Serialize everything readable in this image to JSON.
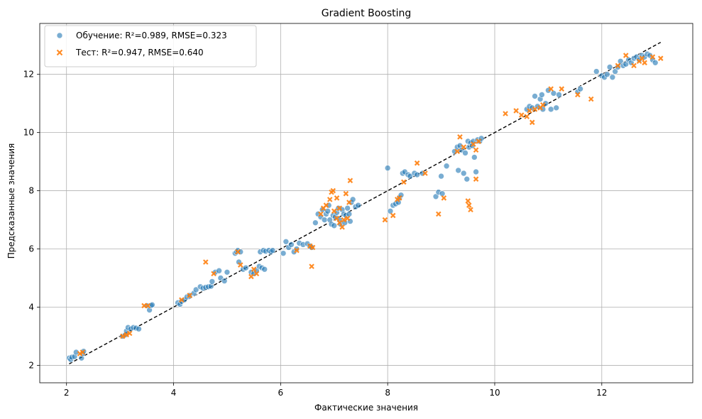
{
  "chart_data": {
    "type": "scatter",
    "title": "Gradient Boosting",
    "xlabel": "Фактические значения",
    "ylabel": "Предсказанные значения",
    "xlim": [
      1.5,
      13.7
    ],
    "ylim": [
      1.4,
      13.75
    ],
    "xticks": [
      2,
      4,
      6,
      8,
      10,
      12
    ],
    "yticks": [
      2,
      4,
      6,
      8,
      10,
      12
    ],
    "grid": true,
    "legend_position": "top-left",
    "reference_line": {
      "x": [
        2.05,
        13.1
      ],
      "y": [
        2.05,
        13.1
      ],
      "style": "dashed",
      "color": "#000000"
    },
    "colors": {
      "train": "#1f77b4",
      "test": "#ff7f0e",
      "grid": "#b0b0b0"
    },
    "series": [
      {
        "name": "Обучение: R²=0.989, RMSE=0.323",
        "marker": "circle",
        "points": [
          [
            2.05,
            2.25
          ],
          [
            2.08,
            2.2
          ],
          [
            2.1,
            2.28
          ],
          [
            2.15,
            2.3
          ],
          [
            2.18,
            2.45
          ],
          [
            2.28,
            2.25
          ],
          [
            2.3,
            2.4
          ],
          [
            2.32,
            2.48
          ],
          [
            3.05,
            3.0
          ],
          [
            3.1,
            3.05
          ],
          [
            3.12,
            3.18
          ],
          [
            3.15,
            3.3
          ],
          [
            3.2,
            3.25
          ],
          [
            3.25,
            3.3
          ],
          [
            3.3,
            3.28
          ],
          [
            3.35,
            3.25
          ],
          [
            3.5,
            4.05
          ],
          [
            3.55,
            3.9
          ],
          [
            3.58,
            4.05
          ],
          [
            3.6,
            4.08
          ],
          [
            4.08,
            4.15
          ],
          [
            4.12,
            4.1
          ],
          [
            4.15,
            4.2
          ],
          [
            4.2,
            4.25
          ],
          [
            4.25,
            4.35
          ],
          [
            4.3,
            4.4
          ],
          [
            4.38,
            4.48
          ],
          [
            4.42,
            4.6
          ],
          [
            4.5,
            4.7
          ],
          [
            4.55,
            4.65
          ],
          [
            4.6,
            4.68
          ],
          [
            4.65,
            4.7
          ],
          [
            4.7,
            4.72
          ],
          [
            4.72,
            4.88
          ],
          [
            4.78,
            5.2
          ],
          [
            4.85,
            5.25
          ],
          [
            4.88,
            5.0
          ],
          [
            4.95,
            4.9
          ],
          [
            5.0,
            5.2
          ],
          [
            5.15,
            5.85
          ],
          [
            5.18,
            5.9
          ],
          [
            5.2,
            5.95
          ],
          [
            5.25,
            5.9
          ],
          [
            5.22,
            5.55
          ],
          [
            5.3,
            5.3
          ],
          [
            5.35,
            5.35
          ],
          [
            5.45,
            5.2
          ],
          [
            5.5,
            5.15
          ],
          [
            5.55,
            5.25
          ],
          [
            5.6,
            5.4
          ],
          [
            5.65,
            5.35
          ],
          [
            5.7,
            5.3
          ],
          [
            5.62,
            5.9
          ],
          [
            5.68,
            5.95
          ],
          [
            5.72,
            5.92
          ],
          [
            5.78,
            5.95
          ],
          [
            5.82,
            5.9
          ],
          [
            5.85,
            5.95
          ],
          [
            6.05,
            5.85
          ],
          [
            6.1,
            6.25
          ],
          [
            6.15,
            6.05
          ],
          [
            6.2,
            6.15
          ],
          [
            6.25,
            5.9
          ],
          [
            6.3,
            6.0
          ],
          [
            6.35,
            6.2
          ],
          [
            6.42,
            6.15
          ],
          [
            6.5,
            6.18
          ],
          [
            6.55,
            6.1
          ],
          [
            6.58,
            6.05
          ],
          [
            6.65,
            6.9
          ],
          [
            6.7,
            7.2
          ],
          [
            6.75,
            7.1
          ],
          [
            6.78,
            7.35
          ],
          [
            6.82,
            7.0
          ],
          [
            6.85,
            7.2
          ],
          [
            6.88,
            7.3
          ],
          [
            6.9,
            7.5
          ],
          [
            6.92,
            7.0
          ],
          [
            6.95,
            6.85
          ],
          [
            6.98,
            7.15
          ],
          [
            7.0,
            6.8
          ],
          [
            7.02,
            7.1
          ],
          [
            7.05,
            7.25
          ],
          [
            7.08,
            7.4
          ],
          [
            7.1,
            7.0
          ],
          [
            7.12,
            6.85
          ],
          [
            7.15,
            7.35
          ],
          [
            7.18,
            7.2
          ],
          [
            7.2,
            6.9
          ],
          [
            7.22,
            7.15
          ],
          [
            7.25,
            7.4
          ],
          [
            7.28,
            7.2
          ],
          [
            7.3,
            6.95
          ],
          [
            7.32,
            7.6
          ],
          [
            7.35,
            7.7
          ],
          [
            7.4,
            7.45
          ],
          [
            7.45,
            7.5
          ],
          [
            8.0,
            8.78
          ],
          [
            8.05,
            7.3
          ],
          [
            8.1,
            7.5
          ],
          [
            8.15,
            7.55
          ],
          [
            8.2,
            7.6
          ],
          [
            8.22,
            7.75
          ],
          [
            8.25,
            7.85
          ],
          [
            8.28,
            8.6
          ],
          [
            8.32,
            8.65
          ],
          [
            8.38,
            8.55
          ],
          [
            8.42,
            8.5
          ],
          [
            8.5,
            8.6
          ],
          [
            8.55,
            8.55
          ],
          [
            8.65,
            8.6
          ],
          [
            8.9,
            7.8
          ],
          [
            8.95,
            7.95
          ],
          [
            9.0,
            8.5
          ],
          [
            9.02,
            7.9
          ],
          [
            9.1,
            8.85
          ],
          [
            9.25,
            9.35
          ],
          [
            9.3,
            9.5
          ],
          [
            9.32,
            8.7
          ],
          [
            9.35,
            9.55
          ],
          [
            9.38,
            9.4
          ],
          [
            9.42,
            8.6
          ],
          [
            9.45,
            9.3
          ],
          [
            9.48,
            8.4
          ],
          [
            9.5,
            9.7
          ],
          [
            9.52,
            9.5
          ],
          [
            9.55,
            9.65
          ],
          [
            9.58,
            9.55
          ],
          [
            9.6,
            9.7
          ],
          [
            9.62,
            9.15
          ],
          [
            9.65,
            8.65
          ],
          [
            9.68,
            9.75
          ],
          [
            9.72,
            9.7
          ],
          [
            9.75,
            9.8
          ],
          [
            10.6,
            10.8
          ],
          [
            10.65,
            10.9
          ],
          [
            10.7,
            10.85
          ],
          [
            10.75,
            11.25
          ],
          [
            10.8,
            10.9
          ],
          [
            10.85,
            11.15
          ],
          [
            10.88,
            11.3
          ],
          [
            10.9,
            10.8
          ],
          [
            10.95,
            11.0
          ],
          [
            11.0,
            11.45
          ],
          [
            11.05,
            10.8
          ],
          [
            11.1,
            11.35
          ],
          [
            11.15,
            10.85
          ],
          [
            11.2,
            11.3
          ],
          [
            11.55,
            11.4
          ],
          [
            11.6,
            11.5
          ],
          [
            11.9,
            12.1
          ],
          [
            12.0,
            11.95
          ],
          [
            12.05,
            11.9
          ],
          [
            12.1,
            12.0
          ],
          [
            12.15,
            12.25
          ],
          [
            12.2,
            11.9
          ],
          [
            12.25,
            12.1
          ],
          [
            12.3,
            12.25
          ],
          [
            12.35,
            12.45
          ],
          [
            12.4,
            12.3
          ],
          [
            12.45,
            12.35
          ],
          [
            12.5,
            12.5
          ],
          [
            12.55,
            12.4
          ],
          [
            12.6,
            12.55
          ],
          [
            12.65,
            12.6
          ],
          [
            12.7,
            12.5
          ],
          [
            12.75,
            12.65
          ],
          [
            12.8,
            12.6
          ],
          [
            12.85,
            12.7
          ],
          [
            12.9,
            12.65
          ],
          [
            12.95,
            12.5
          ],
          [
            13.0,
            12.4
          ]
        ]
      },
      {
        "name": "Тест: R²=0.947, RMSE=0.640",
        "marker": "x",
        "points": [
          [
            2.25,
            2.4
          ],
          [
            2.3,
            2.45
          ],
          [
            3.05,
            3.0
          ],
          [
            3.12,
            3.05
          ],
          [
            3.18,
            3.1
          ],
          [
            3.45,
            4.05
          ],
          [
            3.52,
            4.05
          ],
          [
            4.15,
            4.25
          ],
          [
            4.3,
            4.4
          ],
          [
            4.6,
            5.55
          ],
          [
            4.75,
            5.15
          ],
          [
            5.2,
            5.9
          ],
          [
            5.25,
            5.45
          ],
          [
            5.45,
            5.05
          ],
          [
            5.5,
            5.3
          ],
          [
            5.55,
            5.15
          ],
          [
            6.3,
            5.95
          ],
          [
            6.55,
            6.1
          ],
          [
            6.6,
            6.05
          ],
          [
            6.58,
            5.4
          ],
          [
            6.75,
            7.2
          ],
          [
            6.8,
            7.4
          ],
          [
            6.85,
            7.5
          ],
          [
            6.92,
            7.7
          ],
          [
            6.95,
            7.95
          ],
          [
            6.98,
            8.0
          ],
          [
            7.0,
            7.3
          ],
          [
            7.05,
            7.05
          ],
          [
            7.1,
            6.9
          ],
          [
            7.15,
            6.75
          ],
          [
            7.18,
            7.0
          ],
          [
            7.22,
            7.9
          ],
          [
            7.25,
            7.05
          ],
          [
            7.28,
            7.6
          ],
          [
            7.3,
            8.35
          ],
          [
            7.05,
            7.75
          ],
          [
            7.1,
            7.4
          ],
          [
            7.95,
            7.0
          ],
          [
            8.1,
            7.15
          ],
          [
            8.18,
            7.7
          ],
          [
            8.22,
            7.75
          ],
          [
            8.3,
            8.3
          ],
          [
            8.55,
            8.95
          ],
          [
            8.7,
            8.6
          ],
          [
            8.95,
            7.2
          ],
          [
            9.05,
            7.75
          ],
          [
            9.3,
            9.35
          ],
          [
            9.35,
            9.85
          ],
          [
            9.42,
            9.5
          ],
          [
            9.5,
            7.65
          ],
          [
            9.52,
            7.5
          ],
          [
            9.55,
            7.35
          ],
          [
            9.6,
            9.6
          ],
          [
            9.65,
            9.4
          ],
          [
            9.65,
            8.4
          ],
          [
            9.7,
            9.7
          ],
          [
            10.2,
            10.65
          ],
          [
            10.4,
            10.75
          ],
          [
            10.5,
            10.6
          ],
          [
            10.6,
            10.55
          ],
          [
            10.65,
            10.75
          ],
          [
            10.7,
            10.35
          ],
          [
            10.75,
            10.8
          ],
          [
            10.85,
            10.85
          ],
          [
            10.9,
            10.95
          ],
          [
            11.05,
            11.5
          ],
          [
            11.25,
            11.5
          ],
          [
            11.55,
            11.3
          ],
          [
            11.8,
            11.15
          ],
          [
            12.3,
            12.3
          ],
          [
            12.45,
            12.65
          ],
          [
            12.6,
            12.3
          ],
          [
            12.7,
            12.45
          ],
          [
            12.75,
            12.55
          ],
          [
            12.8,
            12.4
          ],
          [
            12.95,
            12.6
          ],
          [
            13.1,
            12.55
          ]
        ]
      }
    ]
  }
}
